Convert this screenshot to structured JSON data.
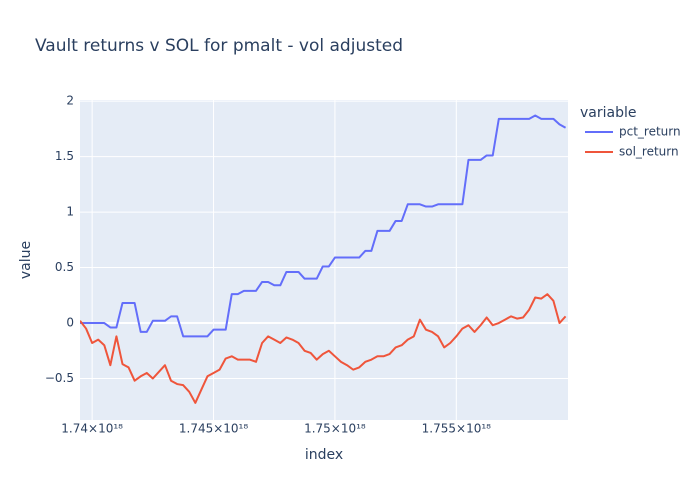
{
  "chart_data": {
    "type": "line",
    "title": "Vault returns v SOL for pmalt - vol adjusted",
    "x_label": "index",
    "y_label": "value",
    "legend_title": "variable",
    "legend_position": "right",
    "grid": true,
    "x": [
      1.7395e+18,
      1.73975e+18,
      1.74e+18,
      1.74025e+18,
      1.7405e+18,
      1.74075e+18,
      1.741e+18,
      1.74125e+18,
      1.7415e+18,
      1.74175e+18,
      1.742e+18,
      1.74225e+18,
      1.7425e+18,
      1.74275e+18,
      1.743e+18,
      1.74325e+18,
      1.7435e+18,
      1.74375e+18,
      1.744e+18,
      1.74425e+18,
      1.7445e+18,
      1.74475e+18,
      1.745e+18,
      1.74525e+18,
      1.7455e+18,
      1.74575e+18,
      1.746e+18,
      1.74625e+18,
      1.7465e+18,
      1.74675e+18,
      1.747e+18,
      1.74725e+18,
      1.7475e+18,
      1.74775e+18,
      1.748e+18,
      1.74825e+18,
      1.7485e+18,
      1.74875e+18,
      1.749e+18,
      1.74925e+18,
      1.7495e+18,
      1.74975e+18,
      1.75e+18,
      1.75025e+18,
      1.7505e+18,
      1.75075e+18,
      1.751e+18,
      1.75125e+18,
      1.7515e+18,
      1.75175e+18,
      1.752e+18,
      1.75225e+18,
      1.7525e+18,
      1.75275e+18,
      1.753e+18,
      1.75325e+18,
      1.7535e+18,
      1.75375e+18,
      1.754e+18,
      1.75425e+18,
      1.7545e+18,
      1.75475e+18,
      1.755e+18,
      1.75525e+18,
      1.7555e+18,
      1.75575e+18,
      1.756e+18,
      1.75625e+18,
      1.7565e+18,
      1.75675e+18,
      1.757e+18,
      1.75725e+18,
      1.7575e+18,
      1.75775e+18,
      1.758e+18,
      1.75825e+18,
      1.7585e+18,
      1.75875e+18,
      1.759e+18,
      1.75925e+18,
      1.7595e+18
    ],
    "series": [
      {
        "name": "pct_return",
        "color": "#636efa",
        "values": [
          0,
          0,
          0,
          0,
          0,
          -0.04,
          -0.04,
          0.18,
          0.18,
          0.18,
          -0.08,
          -0.08,
          0.02,
          0.02,
          0.02,
          0.06,
          0.06,
          -0.12,
          -0.12,
          -0.12,
          -0.12,
          -0.12,
          -0.06,
          -0.06,
          -0.06,
          0.26,
          0.26,
          0.29,
          0.29,
          0.29,
          0.37,
          0.37,
          0.34,
          0.34,
          0.46,
          0.46,
          0.46,
          0.4,
          0.4,
          0.4,
          0.51,
          0.51,
          0.59,
          0.59,
          0.59,
          0.59,
          0.59,
          0.65,
          0.65,
          0.83,
          0.83,
          0.83,
          0.92,
          0.92,
          1.07,
          1.07,
          1.07,
          1.05,
          1.05,
          1.07,
          1.07,
          1.07,
          1.07,
          1.07,
          1.47,
          1.47,
          1.47,
          1.51,
          1.51,
          1.84,
          1.84,
          1.84,
          1.84,
          1.84,
          1.84,
          1.87,
          1.84,
          1.84,
          1.84,
          1.79,
          1.76
        ]
      },
      {
        "name": "sol_return",
        "color": "#EF553B",
        "values": [
          0.02,
          -0.05,
          -0.18,
          -0.15,
          -0.2,
          -0.38,
          -0.12,
          -0.37,
          -0.4,
          -0.52,
          -0.48,
          -0.45,
          -0.5,
          -0.44,
          -0.38,
          -0.52,
          -0.55,
          -0.56,
          -0.62,
          -0.72,
          -0.6,
          -0.48,
          -0.45,
          -0.42,
          -0.32,
          -0.3,
          -0.33,
          -0.33,
          -0.33,
          -0.35,
          -0.18,
          -0.12,
          -0.15,
          -0.18,
          -0.13,
          -0.15,
          -0.18,
          -0.25,
          -0.27,
          -0.33,
          -0.28,
          -0.25,
          -0.3,
          -0.35,
          -0.38,
          -0.42,
          -0.4,
          -0.35,
          -0.33,
          -0.3,
          -0.3,
          -0.28,
          -0.22,
          -0.2,
          -0.15,
          -0.12,
          0.03,
          -0.06,
          -0.08,
          -0.12,
          -0.22,
          -0.18,
          -0.12,
          -0.05,
          -0.02,
          -0.08,
          -0.02,
          0.05,
          -0.02,
          0.0,
          0.03,
          0.06,
          0.04,
          0.05,
          0.12,
          0.23,
          0.22,
          0.26,
          0.2,
          0.0,
          0.06
        ]
      }
    ],
    "xlim": [
      1.7395e+18,
      1.7596e+18
    ],
    "xticks": [
      {
        "value": 1.74e+18,
        "label": "1.74×10¹⁸"
      },
      {
        "value": 1.745e+18,
        "label": "1.745×10¹⁸"
      },
      {
        "value": 1.75e+18,
        "label": "1.75×10¹⁸"
      },
      {
        "value": 1.755e+18,
        "label": "1.755×10¹⁸"
      }
    ],
    "ylim": [
      -0.874,
      2.01
    ],
    "yticks": [
      {
        "value": -0.5,
        "label": "−0.5"
      },
      0,
      0.5,
      1,
      1.5,
      2
    ]
  }
}
